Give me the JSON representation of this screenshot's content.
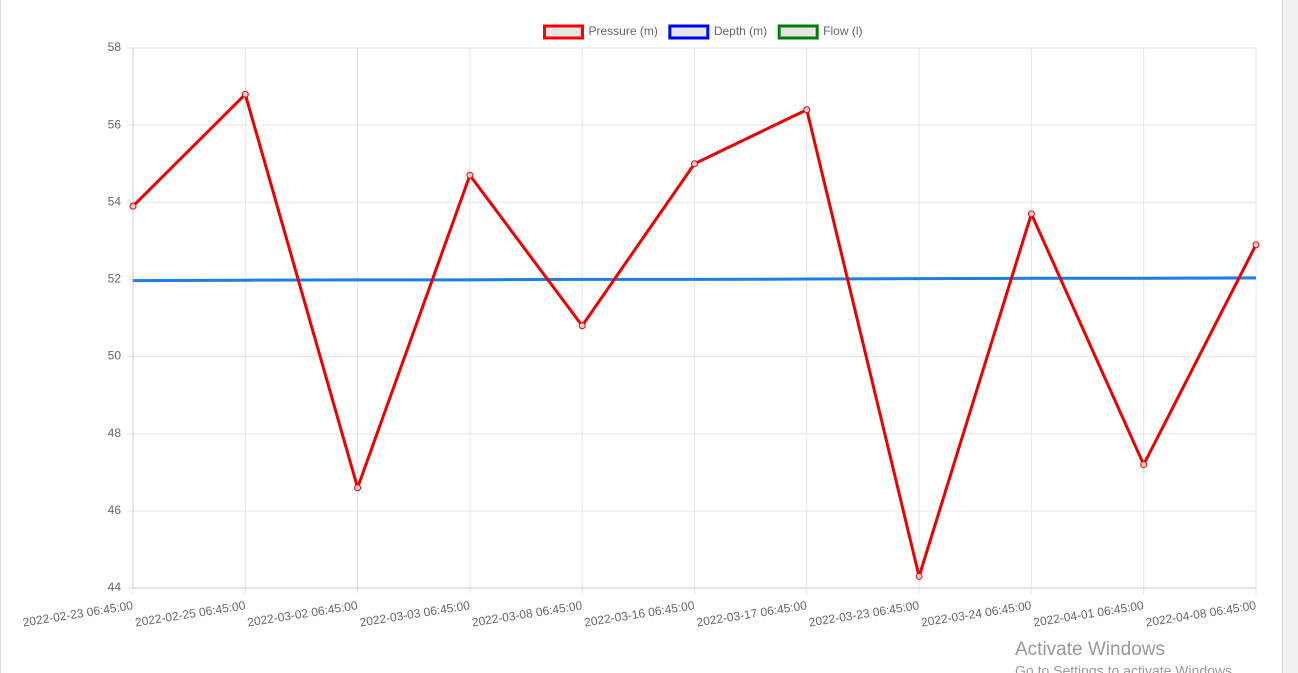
{
  "chart_data": {
    "type": "line",
    "categories": [
      "2022-02-23 06:45:00",
      "2022-02-25 06:45:00",
      "2022-03-02 06:45:00",
      "2022-03-03 06:45:00",
      "2022-03-08 06:45:00",
      "2022-03-16 06:45:00",
      "2022-03-17 06:45:00",
      "2022-03-23 06:45:00",
      "2022-03-24 06:45:00",
      "2022-04-01 06:45:00",
      "2022-04-08 06:45:00"
    ],
    "series": [
      {
        "name": "Pressure (m)",
        "color": "#ff0000",
        "line_color": "#ee0000",
        "point_radius": 3,
        "values": [
          53.9,
          56.8,
          46.6,
          54.7,
          50.8,
          55.0,
          56.4,
          44.3,
          53.7,
          47.2,
          52.9
        ]
      },
      {
        "name": "Depth (m)",
        "color": "#0000ff",
        "line_color": "#1a7fe6",
        "point_radius": 0,
        "values": [
          51.97,
          51.98,
          51.99,
          51.99,
          52.0,
          52.0,
          52.01,
          52.02,
          52.03,
          52.03,
          52.04
        ]
      },
      {
        "name": "Flow (l)",
        "color": "#008000",
        "line_color": "#008000",
        "point_radius": 0,
        "values": [
          null,
          null,
          null,
          null,
          null,
          null,
          null,
          null,
          null,
          null,
          null
        ]
      }
    ],
    "ylim": [
      44,
      58
    ],
    "yticks": [
      44,
      46,
      48,
      50,
      52,
      54,
      56,
      58
    ],
    "grid": true,
    "legend": "top"
  },
  "watermark": {
    "title": "Activate Windows",
    "subtitle": "Go to Settings to activate Windows."
  }
}
